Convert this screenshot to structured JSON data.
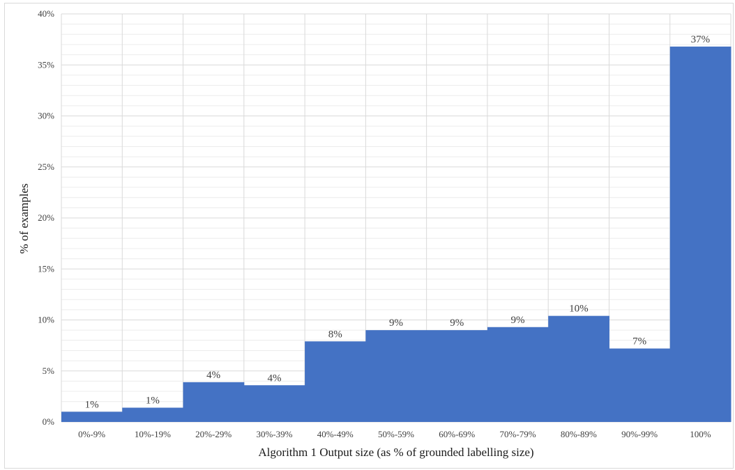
{
  "chart_data": {
    "type": "bar",
    "xlabel": "Algorithm 1 Output size (as % of grounded labelling size)",
    "ylabel": "% of examples",
    "categories": [
      "0%-9%",
      "10%-19%",
      "20%-29%",
      "30%-39%",
      "40%-49%",
      "50%-59%",
      "60%-69%",
      "70%-79%",
      "80%-89%",
      "90%-99%",
      "100%"
    ],
    "values": [
      1.0,
      1.4,
      3.9,
      3.6,
      7.9,
      9.0,
      9.0,
      9.3,
      10.4,
      7.2,
      36.8
    ],
    "data_labels": [
      "1%",
      "1%",
      "4%",
      "4%",
      "8%",
      "9%",
      "9%",
      "9%",
      "10%",
      "7%",
      "37%"
    ],
    "ylim": [
      0,
      40
    ],
    "yticks": [
      0,
      5,
      10,
      15,
      20,
      25,
      30,
      35,
      40
    ],
    "ytick_labels": [
      "0%",
      "5%",
      "10%",
      "15%",
      "20%",
      "25%",
      "30%",
      "35%",
      "40%"
    ],
    "bar_color": "#4472c4",
    "gridline_color": "#d9d9d9",
    "minor_gridline_color": "#ececec",
    "grid": true,
    "legend": "none"
  }
}
